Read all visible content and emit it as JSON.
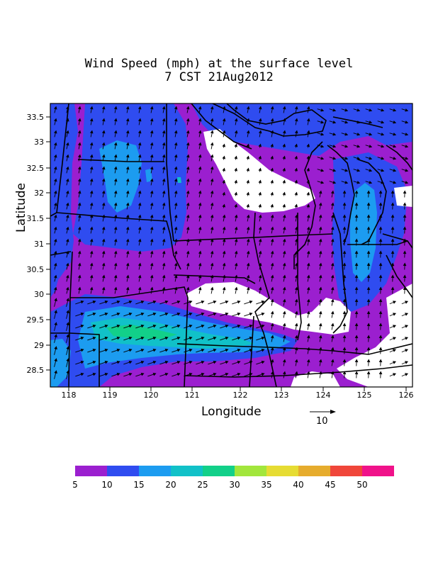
{
  "title_line1": "Wind Speed (mph) at the surface level",
  "title_line2": "7 CST 21Aug2012",
  "xlabel": "Longitude",
  "ylabel": "Latitude",
  "x_ticks": [
    "118",
    "119",
    "120",
    "121",
    "122",
    "123",
    "124",
    "125",
    "126"
  ],
  "y_ticks": [
    "33.5",
    "33",
    "32.5",
    "32",
    "31.5",
    "31",
    "30.5",
    "30",
    "29.5",
    "29",
    "28.5"
  ],
  "reference_vector": {
    "label": "10",
    "value": 10
  },
  "colorbar": {
    "labels": [
      "5",
      "10",
      "15",
      "20",
      "25",
      "30",
      "35",
      "40",
      "45",
      "50"
    ],
    "colors": [
      "#9b1fcf",
      "#2f4cf0",
      "#1c9cf0",
      "#11c1c8",
      "#12d089",
      "#a2e63c",
      "#e6dc33",
      "#e6ac2d",
      "#f0463a",
      "#f0128a"
    ]
  },
  "background_color": "#9b1fcf"
}
